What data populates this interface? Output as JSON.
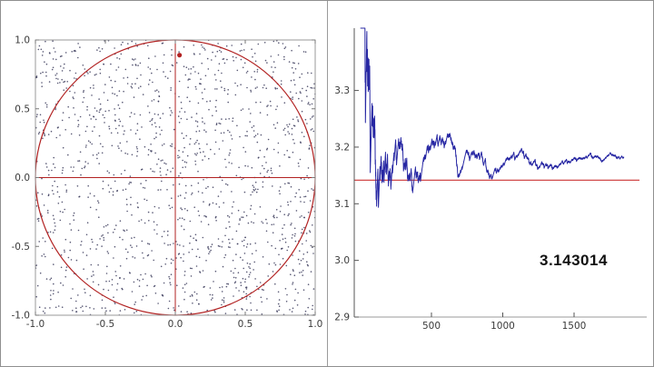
{
  "app": {
    "background": "#ffffff",
    "border_color": "#8f8f8f",
    "divider_color": "#9a9a9a"
  },
  "chart_data": [
    {
      "type": "scatter",
      "title": "",
      "xlabel": "",
      "ylabel": "",
      "xlim": [
        -1.0,
        1.0
      ],
      "ylim": [
        -1.0,
        1.0
      ],
      "x_ticks": [
        -1.0,
        -0.5,
        0.0,
        0.5,
        1.0
      ],
      "y_ticks": [
        -1.0,
        -0.5,
        0.0,
        0.5,
        1.0
      ],
      "x_tick_labels": [
        "-1.0",
        "-0.5",
        "0.0",
        "0.5",
        "1.0"
      ],
      "y_tick_labels": [
        "-1.0",
        "-0.5",
        "0.0",
        "0.5",
        "1.0"
      ],
      "grid": false,
      "frame": true,
      "frame_color": "#9a9a9a",
      "points": {
        "n": 1500,
        "seed": 12345,
        "distribution": "uniform-square",
        "color": "#3b3b5c",
        "radius": 0.8
      },
      "unit_circle": {
        "cx": 0,
        "cy": 0,
        "r": 1,
        "color": "#b22222"
      },
      "axis_cross": {
        "x": 0,
        "y": 0,
        "color": "#b22222"
      },
      "highlight_point": {
        "x": 0.03,
        "y": 0.89,
        "color": "#b22222",
        "radius": 2.6
      }
    },
    {
      "type": "line",
      "title": "",
      "xlabel": "",
      "ylabel": "",
      "xlim": [
        0,
        1900
      ],
      "ylim": [
        2.9,
        3.41
      ],
      "x_ticks": [
        500,
        1000,
        1500
      ],
      "y_ticks": [
        2.9,
        3.0,
        3.1,
        3.2,
        3.3
      ],
      "x_tick_labels": [
        "500",
        "1000",
        "1500"
      ],
      "y_tick_labels": [
        "2.9",
        "3.0",
        "3.1",
        "3.2",
        "3.3"
      ],
      "grid": false,
      "legend": "none",
      "series": [
        {
          "name": "running-pi-estimate",
          "color": "#2727a3",
          "generator": {
            "kind": "monte-carlo-pi-running-mean",
            "seed": 9,
            "n": 1850
          }
        }
      ],
      "reference_line": {
        "y": 3.141593,
        "color": "#cc3333"
      },
      "annotation": {
        "text": "3.143014",
        "x": 1300,
        "y": 2.98
      }
    }
  ]
}
